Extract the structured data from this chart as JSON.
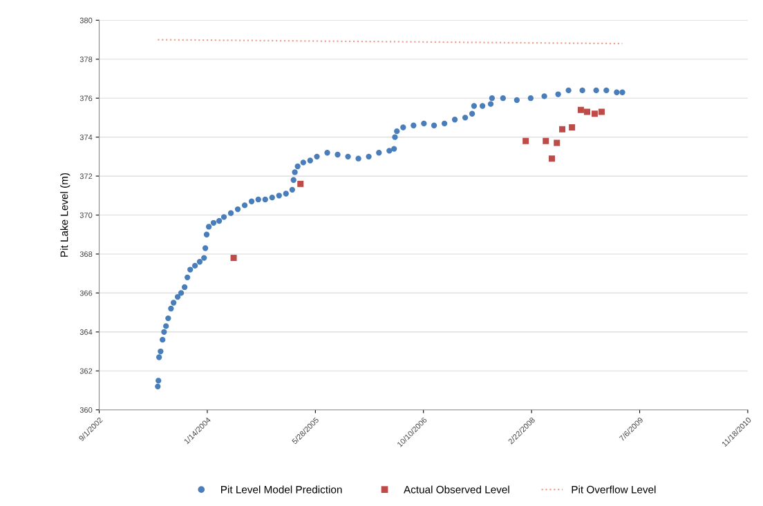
{
  "chart_data": {
    "type": "scatter",
    "ylabel": "Pit Lake Level (m)",
    "xlim": [
      "2002-09-01",
      "2010-11-18"
    ],
    "xticks": [
      {
        "value": "2002-09-01",
        "label": "9/1/2002"
      },
      {
        "value": "2004-01-14",
        "label": "1/14/2004"
      },
      {
        "value": "2005-05-28",
        "label": "5/28/2005"
      },
      {
        "value": "2006-10-10",
        "label": "10/10/2006"
      },
      {
        "value": "2008-02-22",
        "label": "2/22/2008"
      },
      {
        "value": "2009-07-06",
        "label": "7/6/2009"
      },
      {
        "value": "2010-11-18",
        "label": "11/18/2010"
      }
    ],
    "ylim": [
      360,
      380
    ],
    "yticks": [
      360,
      362,
      364,
      366,
      368,
      370,
      372,
      374,
      376,
      378,
      380
    ],
    "grid": "y",
    "legend": "bottom",
    "series": [
      {
        "name": "Pit Level Model Prediction",
        "marker": "circle",
        "color": "#4a7ebb",
        "x": [
          "2003-05-30",
          "2003-06-02",
          "2003-06-05",
          "2003-06-12",
          "2003-06-21",
          "2003-06-28",
          "2003-07-07",
          "2003-07-17",
          "2003-07-30",
          "2003-08-11",
          "2003-08-30",
          "2003-09-15",
          "2003-10-01",
          "2003-10-14",
          "2003-10-27",
          "2003-11-18",
          "2003-12-10",
          "2003-12-30",
          "2004-01-05",
          "2004-01-11",
          "2004-01-21",
          "2004-02-12",
          "2004-03-09",
          "2004-03-31",
          "2004-05-02",
          "2004-06-03",
          "2004-07-05",
          "2004-08-06",
          "2004-09-06",
          "2004-10-08",
          "2004-11-09",
          "2004-12-11",
          "2005-01-12",
          "2005-02-10",
          "2005-02-16",
          "2005-02-22",
          "2005-03-07",
          "2005-04-02",
          "2005-05-04",
          "2005-06-04",
          "2005-07-22",
          "2005-09-08",
          "2005-10-26",
          "2005-12-13",
          "2006-01-30",
          "2006-03-18",
          "2006-05-05",
          "2006-05-27",
          "2006-05-31",
          "2006-06-09",
          "2006-07-08",
          "2006-08-25",
          "2006-10-12",
          "2006-11-28",
          "2007-01-15",
          "2007-03-04",
          "2007-04-21",
          "2007-05-23",
          "2007-06-01",
          "2007-07-10",
          "2007-08-17",
          "2007-08-23",
          "2007-10-13",
          "2007-12-16",
          "2008-02-18",
          "2008-04-21",
          "2008-06-24",
          "2008-08-11",
          "2008-10-14",
          "2008-12-17",
          "2009-02-02",
          "2009-03-22",
          "2009-04-17"
        ],
        "values": [
          361.2,
          361.5,
          362.7,
          363.0,
          363.6,
          364.0,
          364.3,
          364.7,
          365.2,
          365.5,
          365.8,
          366.0,
          366.3,
          366.8,
          367.2,
          367.4,
          367.6,
          367.8,
          368.3,
          369.0,
          369.4,
          369.6,
          369.7,
          369.9,
          370.1,
          370.3,
          370.5,
          370.7,
          370.8,
          370.8,
          370.9,
          371.0,
          371.1,
          371.3,
          371.8,
          372.2,
          372.5,
          372.7,
          372.8,
          373.0,
          373.2,
          373.1,
          373.0,
          372.9,
          373.0,
          373.2,
          373.3,
          373.4,
          374.0,
          374.3,
          374.5,
          374.6,
          374.7,
          374.6,
          374.7,
          374.9,
          375.0,
          375.2,
          375.6,
          375.6,
          375.7,
          376.0,
          376.0,
          375.9,
          376.0,
          376.1,
          376.2,
          376.4,
          376.4,
          376.4,
          376.4,
          376.3,
          376.3
        ]
      },
      {
        "name": "Actual Observed Level",
        "marker": "square",
        "color": "#be4b48",
        "x": [
          "2004-05-15",
          "2005-03-20",
          "2008-01-26",
          "2008-04-28",
          "2008-05-26",
          "2008-06-18",
          "2008-07-13",
          "2008-08-27",
          "2008-10-07",
          "2008-11-05",
          "2008-12-10",
          "2009-01-11"
        ],
        "values": [
          367.8,
          371.6,
          373.8,
          373.8,
          372.9,
          373.7,
          374.4,
          374.5,
          375.4,
          375.3,
          375.2,
          375.3
        ]
      },
      {
        "name": "Pit Overflow Level",
        "type": "line",
        "marker": "none",
        "line_style": "dotted",
        "color": "#f0a090",
        "x": [
          "2003-05-30",
          "2009-04-17"
        ],
        "values": [
          379.0,
          378.8
        ]
      }
    ]
  }
}
